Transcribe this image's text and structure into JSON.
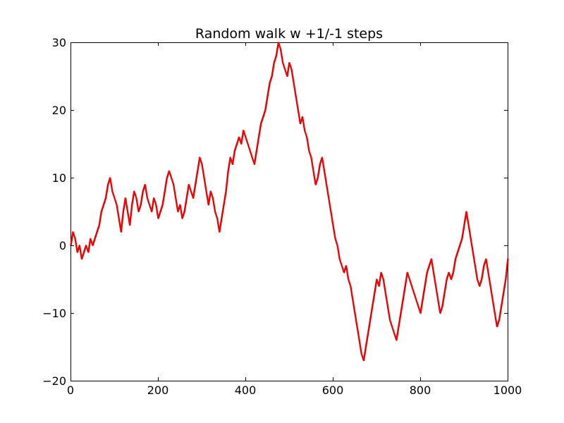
{
  "chart_data": {
    "type": "line",
    "title": "Random walk w +1/-1 steps",
    "xlabel": "",
    "ylabel": "",
    "xlim": [
      0,
      1000
    ],
    "ylim": [
      -20,
      30
    ],
    "xticks": [
      0,
      200,
      400,
      600,
      800,
      1000
    ],
    "xtick_labels": [
      "0",
      "200",
      "400",
      "600",
      "800",
      "1000"
    ],
    "yticks": [
      -20,
      -10,
      0,
      10,
      20,
      30
    ],
    "ytick_labels": [
      "−20",
      "−10",
      "0",
      "10",
      "20",
      "30"
    ],
    "grid": false,
    "legend": "none",
    "series_color": "#ff0000",
    "series_shadow_color": "#b00000",
    "series": [
      {
        "x": [
          0,
          5,
          10,
          15,
          20,
          25,
          30,
          35,
          40,
          45,
          50,
          55,
          60,
          65,
          70,
          75,
          80,
          85,
          90,
          95,
          100,
          105,
          110,
          115,
          120,
          125,
          130,
          135,
          140,
          145,
          150,
          155,
          160,
          165,
          170,
          175,
          180,
          185,
          190,
          195,
          200,
          205,
          210,
          215,
          220,
          225,
          230,
          235,
          240,
          245,
          250,
          255,
          260,
          265,
          270,
          275,
          280,
          285,
          290,
          295,
          300,
          305,
          310,
          315,
          320,
          325,
          330,
          335,
          340,
          345,
          350,
          355,
          360,
          365,
          370,
          375,
          380,
          385,
          390,
          395,
          400,
          405,
          410,
          415,
          420,
          425,
          430,
          435,
          440,
          445,
          450,
          455,
          460,
          465,
          470,
          475,
          480,
          485,
          490,
          495,
          500,
          505,
          510,
          515,
          520,
          525,
          530,
          535,
          540,
          545,
          550,
          555,
          560,
          565,
          570,
          575,
          580,
          585,
          590,
          595,
          600,
          605,
          610,
          615,
          620,
          625,
          630,
          635,
          640,
          645,
          650,
          655,
          660,
          665,
          670,
          675,
          680,
          685,
          690,
          695,
          700,
          705,
          710,
          715,
          720,
          725,
          730,
          735,
          740,
          745,
          750,
          755,
          760,
          765,
          770,
          775,
          780,
          785,
          790,
          795,
          800,
          805,
          810,
          815,
          820,
          825,
          830,
          835,
          840,
          845,
          850,
          855,
          860,
          865,
          870,
          875,
          880,
          885,
          890,
          895,
          900,
          905,
          910,
          915,
          920,
          925,
          930,
          935,
          940,
          945,
          950,
          955,
          960,
          965,
          970,
          975,
          980,
          985,
          990,
          995,
          1000
        ],
        "y": [
          0,
          2,
          1,
          -1,
          0,
          -2,
          -1,
          0,
          -1,
          1,
          0,
          1,
          2,
          3,
          5,
          6,
          7,
          9,
          10,
          8,
          7,
          6,
          4,
          2,
          5,
          7,
          5,
          3,
          6,
          8,
          7,
          5,
          6,
          8,
          9,
          7,
          6,
          5,
          7,
          6,
          4,
          5,
          6,
          8,
          10,
          11,
          10,
          9,
          7,
          5,
          6,
          4,
          5,
          7,
          9,
          8,
          7,
          9,
          11,
          13,
          12,
          10,
          8,
          6,
          8,
          7,
          5,
          4,
          2,
          4,
          6,
          8,
          11,
          13,
          12,
          14,
          15,
          16,
          15,
          17,
          16,
          15,
          14,
          13,
          12,
          14,
          16,
          18,
          19,
          20,
          22,
          24,
          25,
          27,
          28,
          30,
          29,
          27,
          26,
          25,
          27,
          26,
          24,
          22,
          20,
          18,
          19,
          17,
          16,
          14,
          13,
          11,
          9,
          10,
          12,
          13,
          11,
          9,
          7,
          5,
          3,
          1,
          0,
          -2,
          -3,
          -4,
          -3,
          -5,
          -6,
          -8,
          -10,
          -12,
          -14,
          -16,
          -17,
          -15,
          -13,
          -11,
          -9,
          -7,
          -5,
          -6,
          -4,
          -5,
          -7,
          -9,
          -11,
          -12,
          -13,
          -14,
          -12,
          -10,
          -8,
          -6,
          -4,
          -5,
          -6,
          -7,
          -8,
          -9,
          -10,
          -8,
          -6,
          -4,
          -3,
          -2,
          -4,
          -6,
          -8,
          -10,
          -9,
          -7,
          -5,
          -4,
          -5,
          -4,
          -2,
          -1,
          0,
          1,
          3,
          5,
          3,
          1,
          -1,
          -3,
          -5,
          -6,
          -5,
          -3,
          -2,
          -4,
          -6,
          -8,
          -10,
          -12,
          -11,
          -9,
          -7,
          -5,
          -2
        ]
      }
    ]
  }
}
